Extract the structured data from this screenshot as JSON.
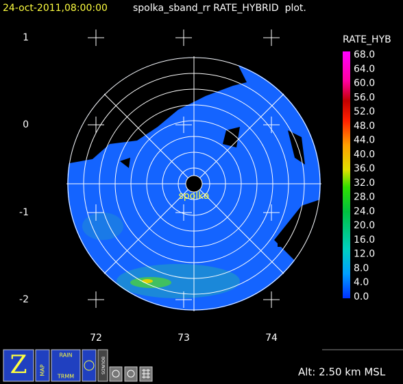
{
  "header": {
    "timestamp": "24-oct-2011,08:00:00",
    "title": "spolka_sband_rr RATE_HYBRID  plot."
  },
  "axes": {
    "y_labels": [
      "1",
      "0",
      "-1",
      "-2"
    ],
    "x_labels": [
      "72",
      "73",
      "74"
    ]
  },
  "station": "spolka",
  "legend": {
    "title": "RATE_HYB",
    "labels": [
      "68.0",
      "64.0",
      "60.0",
      "56.0",
      "52.0",
      "48.0",
      "44.0",
      "40.0",
      "36.0",
      "32.0",
      "28.0",
      "24.0",
      "20.0",
      "16.0",
      "12.0",
      "8.0",
      "4.0",
      "0.0"
    ]
  },
  "toolbar": {
    "buttons": [
      "Z",
      "MAP",
      "RAIN",
      "TRMM",
      "BOUNDS"
    ]
  },
  "altitude": "Alt: 2.50 km MSL"
}
